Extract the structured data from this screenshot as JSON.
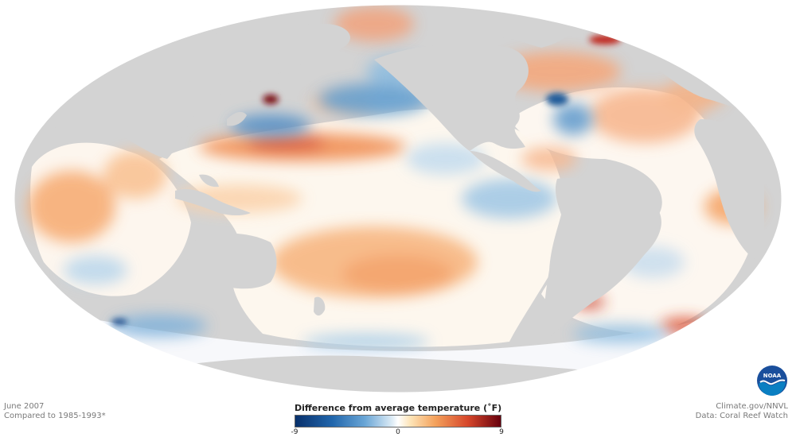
{
  "map": {
    "projection": "mollweide",
    "variable": "sea surface temperature anomaly",
    "land_color": "#d3d3d3"
  },
  "footer": {
    "date": "June 2007",
    "baseline": "Compared to 1985-1993*",
    "credit": "Climate.gov/NNVL",
    "data_source": "Data: Coral Reef Watch"
  },
  "legend": {
    "title": "Difference from average temperature (˚F)",
    "min_label": "-9",
    "mid_label": "0",
    "max_label": "9",
    "min": -9,
    "max": 9,
    "colors": [
      "#08306b",
      "#2166ac",
      "#6aa6d6",
      "#ffffff",
      "#f4a25c",
      "#d6472b",
      "#67000d"
    ]
  },
  "logo": {
    "text": "NOAA",
    "colors": [
      "#1a4f9c",
      "#0a7fc2",
      "#ffffff"
    ]
  }
}
